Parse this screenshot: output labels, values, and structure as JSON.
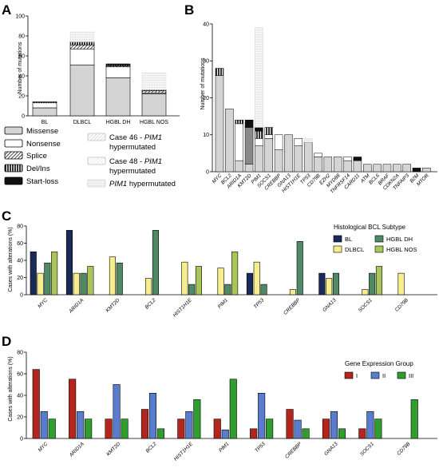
{
  "panels": {
    "A": {
      "label": "A",
      "ylabel": "Number of mutations",
      "ylim": [
        0,
        100
      ],
      "yticks": [
        0,
        20,
        40,
        60,
        80,
        100
      ],
      "categories": [
        "BL",
        "DLBCL",
        "HGBL DH",
        "HGBL NOS"
      ],
      "stacks": [
        {
          "name": "Missense",
          "values": [
            8,
            51,
            38,
            22
          ]
        },
        {
          "name": "Nonsense",
          "values": [
            5,
            16,
            11,
            1
          ]
        },
        {
          "name": "Splice",
          "values": [
            0,
            4,
            1,
            2
          ]
        },
        {
          "name": "Del/Ins",
          "values": [
            1,
            3,
            1,
            1
          ]
        },
        {
          "name": "Start-loss",
          "values": [
            0,
            0,
            1,
            0
          ]
        },
        {
          "name": "Case 46 - PIM1 hypermutated",
          "values": [
            0,
            0,
            0,
            0
          ]
        },
        {
          "name": "Case 48 - PIM1 hypermutated",
          "values": [
            0,
            0,
            0,
            0
          ]
        },
        {
          "name": "PIM1 hypermutated",
          "values": [
            0,
            10,
            0,
            17
          ]
        }
      ],
      "legend": [
        {
          "key": "missense",
          "text": "Missense"
        },
        {
          "key": "nonsense",
          "text": "Nonsense"
        },
        {
          "key": "splice",
          "text": "Splice"
        },
        {
          "key": "delins",
          "text": "Del/Ins"
        },
        {
          "key": "startloss",
          "text": "Start-loss"
        },
        {
          "key": "case46",
          "text_pre": "Case 46 - ",
          "text_it": "PIM1",
          "text_line2": "hypermutated"
        },
        {
          "key": "case48",
          "text_pre": "Case 48 - ",
          "text_it": "PIM1",
          "text_line2": "hypermutated"
        },
        {
          "key": "pim1hyper",
          "text_it": "PIM1",
          "text_post": " hypermutated"
        }
      ]
    },
    "B": {
      "label": "B",
      "ylabel": "Number of mutations",
      "ylim": [
        0,
        40
      ],
      "yticks": [
        0,
        10,
        20,
        30,
        40
      ],
      "genes": [
        "MYC",
        "BCL2",
        "ARID1A",
        "KMT2D",
        "PIM1",
        "SOCS1",
        "CREBBP",
        "GNA13",
        "HIST1H1E",
        "TP53",
        "CD79B",
        "EZH2",
        "MYD88",
        "TNFRSF14",
        "CARD11",
        "ATM",
        "BCL6",
        "BRAF",
        "CDKN2A",
        "TNFAIP3",
        "B2M",
        "MTOR"
      ],
      "stacks": [
        {
          "name": "Missense",
          "values": [
            26,
            17,
            3,
            2,
            7,
            9,
            6,
            10,
            7,
            8,
            4,
            4,
            4,
            3,
            3,
            2,
            2,
            2,
            2,
            2,
            0,
            1
          ]
        },
        {
          "name": "Nonsense",
          "values": [
            0,
            0,
            10,
            10,
            2,
            1,
            4,
            0,
            2,
            0,
            1,
            0,
            0,
            1,
            0,
            0,
            0,
            0,
            0,
            0,
            0,
            0
          ]
        },
        {
          "name": "Splice",
          "values": [
            0,
            0,
            0,
            0,
            0,
            0,
            0,
            0,
            0,
            0,
            0,
            0,
            0,
            0,
            0,
            0,
            0,
            0,
            0,
            0,
            0,
            0
          ]
        },
        {
          "name": "Del/Ins",
          "values": [
            2,
            0,
            1,
            0,
            2,
            2,
            0,
            0,
            0,
            0,
            0,
            0,
            0,
            0,
            0,
            0,
            0,
            0,
            0,
            0,
            0,
            0
          ]
        },
        {
          "name": "Start-loss",
          "values": [
            0,
            0,
            0,
            2,
            1,
            0,
            0,
            0,
            0,
            0,
            0,
            0,
            0,
            0,
            1,
            0,
            0,
            0,
            0,
            0,
            1,
            0
          ]
        },
        {
          "name": "PIM1 hypermutated",
          "values": [
            0,
            0,
            0,
            0,
            27,
            0,
            0,
            0,
            0,
            1,
            0,
            0,
            0,
            0,
            0,
            0,
            0,
            0,
            0,
            0,
            0,
            0
          ]
        }
      ]
    },
    "C": {
      "label": "C",
      "ylabel": "Cases with alterations (%)",
      "ylim": [
        0,
        80
      ],
      "yticks": [
        0,
        20,
        40,
        60,
        80
      ],
      "legend_title": "Histological BCL Subtype",
      "genes": [
        "MYC",
        "ARID1A",
        "KMT2D",
        "BCL2",
        "HIST1H1E",
        "PIM1",
        "TP53",
        "CREBBP",
        "GNA13",
        "SOCS1",
        "CD79B"
      ],
      "series": [
        {
          "name": "BL",
          "color": "#1b2a57",
          "values": [
            50,
            75,
            0,
            0,
            0,
            0,
            25,
            0,
            25,
            0,
            0
          ]
        },
        {
          "name": "DLBCL",
          "color": "#f6ee8c",
          "values": [
            25,
            25,
            44,
            19,
            38,
            31,
            38,
            6,
            19,
            6,
            25
          ]
        },
        {
          "name": "HGBL DH",
          "color": "#4f8a64",
          "values": [
            37,
            25,
            37,
            75,
            12,
            12,
            12,
            62,
            25,
            25,
            0
          ]
        },
        {
          "name": "HGBL NOS",
          "color": "#a9c65a",
          "values": [
            50,
            33,
            0,
            0,
            33,
            50,
            0,
            0,
            0,
            33,
            0
          ]
        }
      ]
    },
    "D": {
      "label": "D",
      "ylabel": "Cases with alterations (%)",
      "ylim": [
        0,
        80
      ],
      "yticks": [
        0,
        20,
        40,
        60,
        80
      ],
      "legend_title": "Gene Expression Group",
      "genes": [
        "MYC",
        "ARID1A",
        "KMT2D",
        "BCL2",
        "HIST1H1E",
        "PIM1",
        "TP53",
        "CREBBP",
        "GNA13",
        "SOCS1",
        "CD79B"
      ],
      "series": [
        {
          "name": "I",
          "color": "#b3261e",
          "values": [
            64,
            55,
            18,
            27,
            18,
            18,
            9,
            27,
            18,
            9,
            0
          ]
        },
        {
          "name": "II",
          "color": "#5a7ccc",
          "values": [
            25,
            25,
            50,
            42,
            25,
            8,
            42,
            17,
            25,
            25,
            0
          ]
        },
        {
          "name": "III",
          "color": "#2f9e2f",
          "values": [
            18,
            18,
            18,
            9,
            36,
            55,
            18,
            9,
            9,
            18,
            36
          ]
        }
      ]
    }
  },
  "colors": {
    "missense": "#d4d4d4",
    "nonsense": "#ffffff",
    "startloss": "#111111",
    "pim1hyper": "#f0f0f0",
    "outline": "#555555",
    "stack_dark": "#888888"
  }
}
